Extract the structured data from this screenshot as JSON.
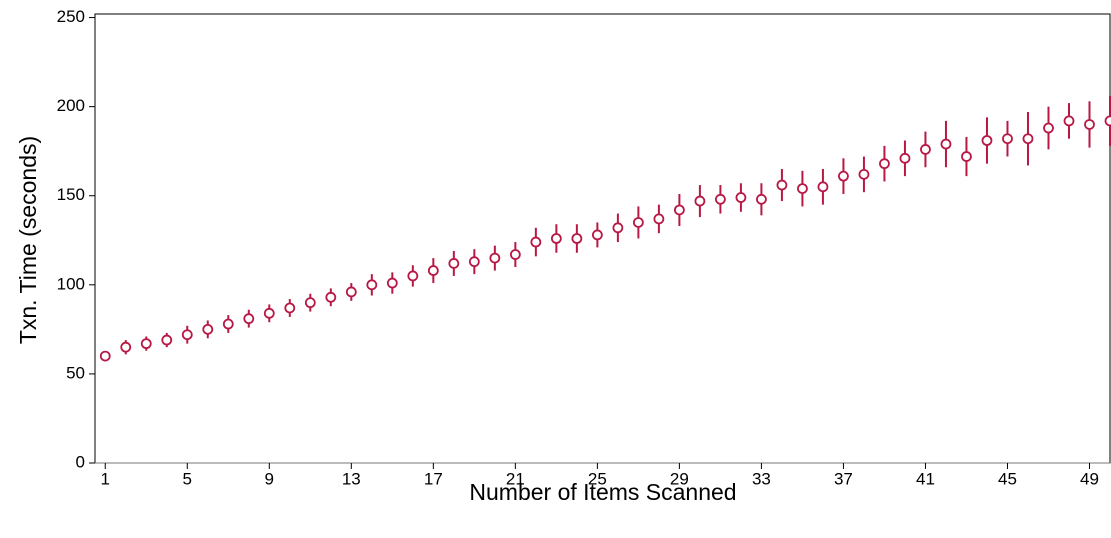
{
  "chart_data": {
    "type": "errorbar",
    "x_label": "Number of Items Scanned",
    "y_label": "Txn. Time (seconds)",
    "x": [
      1,
      2,
      3,
      4,
      5,
      6,
      7,
      8,
      9,
      10,
      11,
      12,
      13,
      14,
      15,
      16,
      17,
      18,
      19,
      20,
      21,
      22,
      23,
      24,
      25,
      26,
      27,
      28,
      29,
      30,
      31,
      32,
      33,
      34,
      35,
      36,
      37,
      38,
      39,
      40,
      41,
      42,
      43,
      44,
      45,
      46,
      47,
      48,
      49,
      50
    ],
    "series": [
      {
        "color": "#b81844",
        "values": [
          60,
          65,
          67,
          69,
          72,
          75,
          78,
          81,
          84,
          87,
          90,
          93,
          96,
          100,
          101,
          105,
          108,
          112,
          113,
          115,
          117,
          124,
          126,
          126,
          128,
          132,
          135,
          137,
          142,
          147,
          148,
          149,
          148,
          156,
          154,
          155,
          161,
          162,
          168,
          171,
          176,
          179,
          172,
          181,
          182,
          182,
          188,
          192,
          190,
          192
        ],
        "errors": [
          2,
          4,
          4,
          4,
          5,
          5,
          5,
          5,
          5,
          5,
          5,
          5,
          5,
          6,
          6,
          6,
          7,
          7,
          7,
          7,
          7,
          8,
          8,
          8,
          7,
          8,
          9,
          8,
          9,
          9,
          8,
          8,
          9,
          9,
          10,
          10,
          10,
          10,
          10,
          10,
          10,
          13,
          11,
          13,
          10,
          15,
          12,
          10,
          13,
          14
        ]
      }
    ],
    "xlim": [
      0.5,
      50
    ],
    "xticks": [
      1,
      5,
      9,
      13,
      17,
      21,
      25,
      29,
      33,
      37,
      41,
      45,
      49
    ],
    "ylim": [
      0,
      252
    ],
    "yticks": [
      0,
      50,
      100,
      150,
      200,
      250
    ]
  }
}
